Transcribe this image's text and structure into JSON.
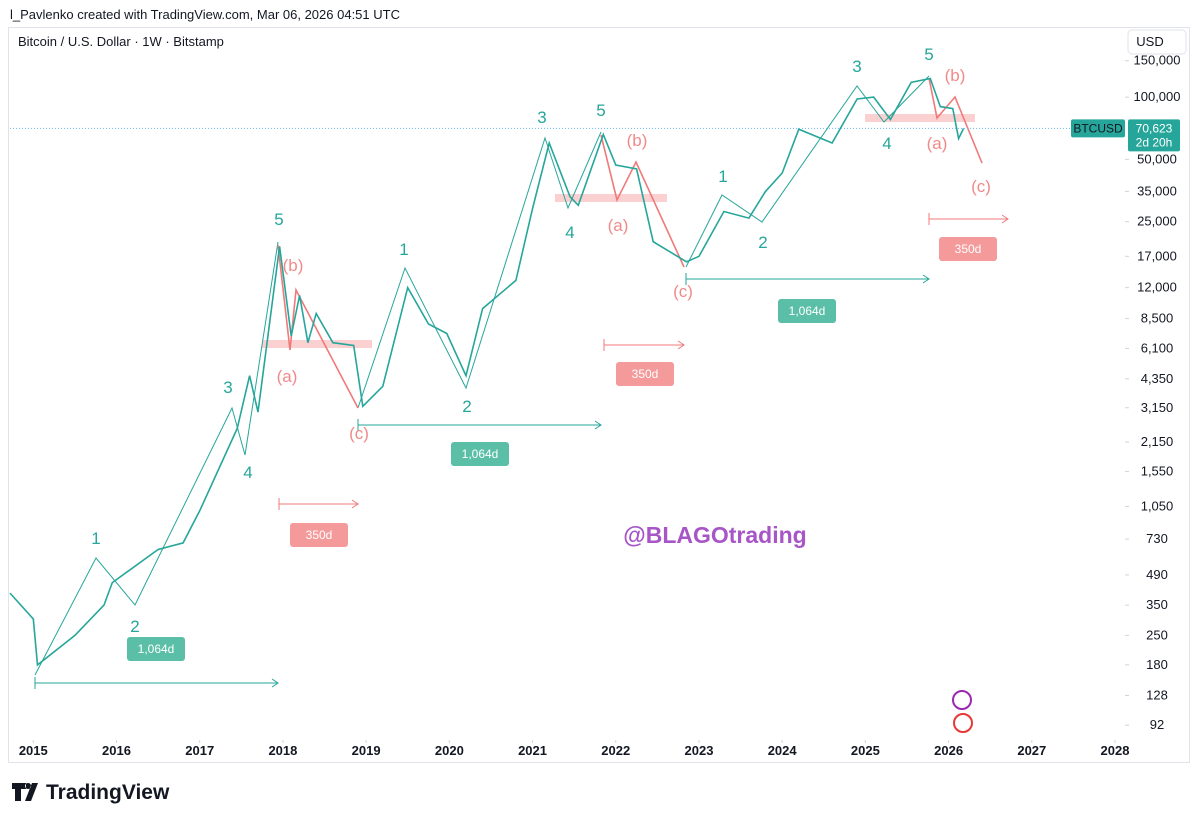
{
  "header": {
    "attribution": "l_Pavlenko created with TradingView.com, Mar 06, 2026 04:51 UTC"
  },
  "chart_data": {
    "type": "line",
    "title": "Bitcoin / U.S. Dollar · 1W · Bitstamp",
    "currency": "USD",
    "log_scale": true,
    "x": [
      2014.72,
      2015.0,
      2015.05,
      2015.5,
      2015.85,
      2015.95,
      2016.5,
      2016.8,
      2017.0,
      2017.45,
      2017.6,
      2017.7,
      2017.96,
      2018.1,
      2018.2,
      2018.3,
      2018.4,
      2018.6,
      2018.85,
      2018.96,
      2019.2,
      2019.5,
      2019.75,
      2019.97,
      2020.2,
      2020.4,
      2020.8,
      2021.0,
      2021.2,
      2021.45,
      2021.55,
      2021.85,
      2022.0,
      2022.25,
      2022.45,
      2022.85,
      2023.0,
      2023.3,
      2023.6,
      2023.8,
      2024.0,
      2024.2,
      2024.6,
      2024.9,
      2025.1,
      2025.3,
      2025.55,
      2025.78,
      2025.9,
      2026.05,
      2026.12,
      2026.18
    ],
    "series": [
      {
        "name": "BTCUSD",
        "color": "#26a69a",
        "values": [
          400,
          300,
          180,
          250,
          350,
          450,
          650,
          700,
          1000,
          2500,
          4500,
          3000,
          19000,
          7000,
          11000,
          6500,
          9000,
          6500,
          6300,
          3200,
          4000,
          12000,
          8000,
          7200,
          4500,
          9500,
          13000,
          29000,
          60000,
          33000,
          30000,
          66000,
          47000,
          45000,
          20000,
          16000,
          17000,
          28000,
          26000,
          35000,
          43000,
          70000,
          60000,
          98000,
          100000,
          78000,
          118000,
          123000,
          90000,
          88000,
          63000,
          70623
        ]
      }
    ],
    "last_price": {
      "value": 70623,
      "label": "70,623",
      "countdown": "2d 20h"
    },
    "xlim": [
      2014.72,
      2028.12
    ],
    "xticks": [
      2015,
      2016,
      2017,
      2018,
      2019,
      2020,
      2021,
      2022,
      2023,
      2024,
      2025,
      2026,
      2027,
      2028
    ],
    "ylim": [
      78,
      169000
    ],
    "yticks": [
      {
        "value": 150000,
        "label": "150,000"
      },
      {
        "value": 100000,
        "label": "100,000"
      },
      {
        "value": 50000,
        "label": "50,000"
      },
      {
        "value": 35000,
        "label": "35,000"
      },
      {
        "value": 25000,
        "label": "25,000"
      },
      {
        "value": 17000,
        "label": "17,000"
      },
      {
        "value": 12000,
        "label": "12,000"
      },
      {
        "value": 8500,
        "label": "8,500"
      },
      {
        "value": 6100,
        "label": "6,100"
      },
      {
        "value": 4350,
        "label": "4,350"
      },
      {
        "value": 3150,
        "label": "3,150"
      },
      {
        "value": 2150,
        "label": "2,150"
      },
      {
        "value": 1550,
        "label": "1,550"
      },
      {
        "value": 1050,
        "label": "1,050"
      },
      730,
      490,
      350,
      250,
      180,
      128,
      92
    ],
    "impulse_labels": [
      "1",
      "2",
      "3",
      "4",
      "5",
      "1",
      "2",
      "3",
      "4",
      "5",
      "1",
      "2",
      "3",
      "4",
      "5"
    ],
    "correction_labels": [
      "(b)",
      "(a)",
      "(c)",
      "(b)",
      "(a)",
      "(c)",
      "(b)",
      "(a)",
      "(c)"
    ],
    "duration_labels": [
      "1,064d",
      "350d",
      "1,064d",
      "350d",
      "1,064d",
      "350d"
    ],
    "watermark": "@BLAGOtrading"
  },
  "footer": {
    "brand": "TradingView"
  }
}
